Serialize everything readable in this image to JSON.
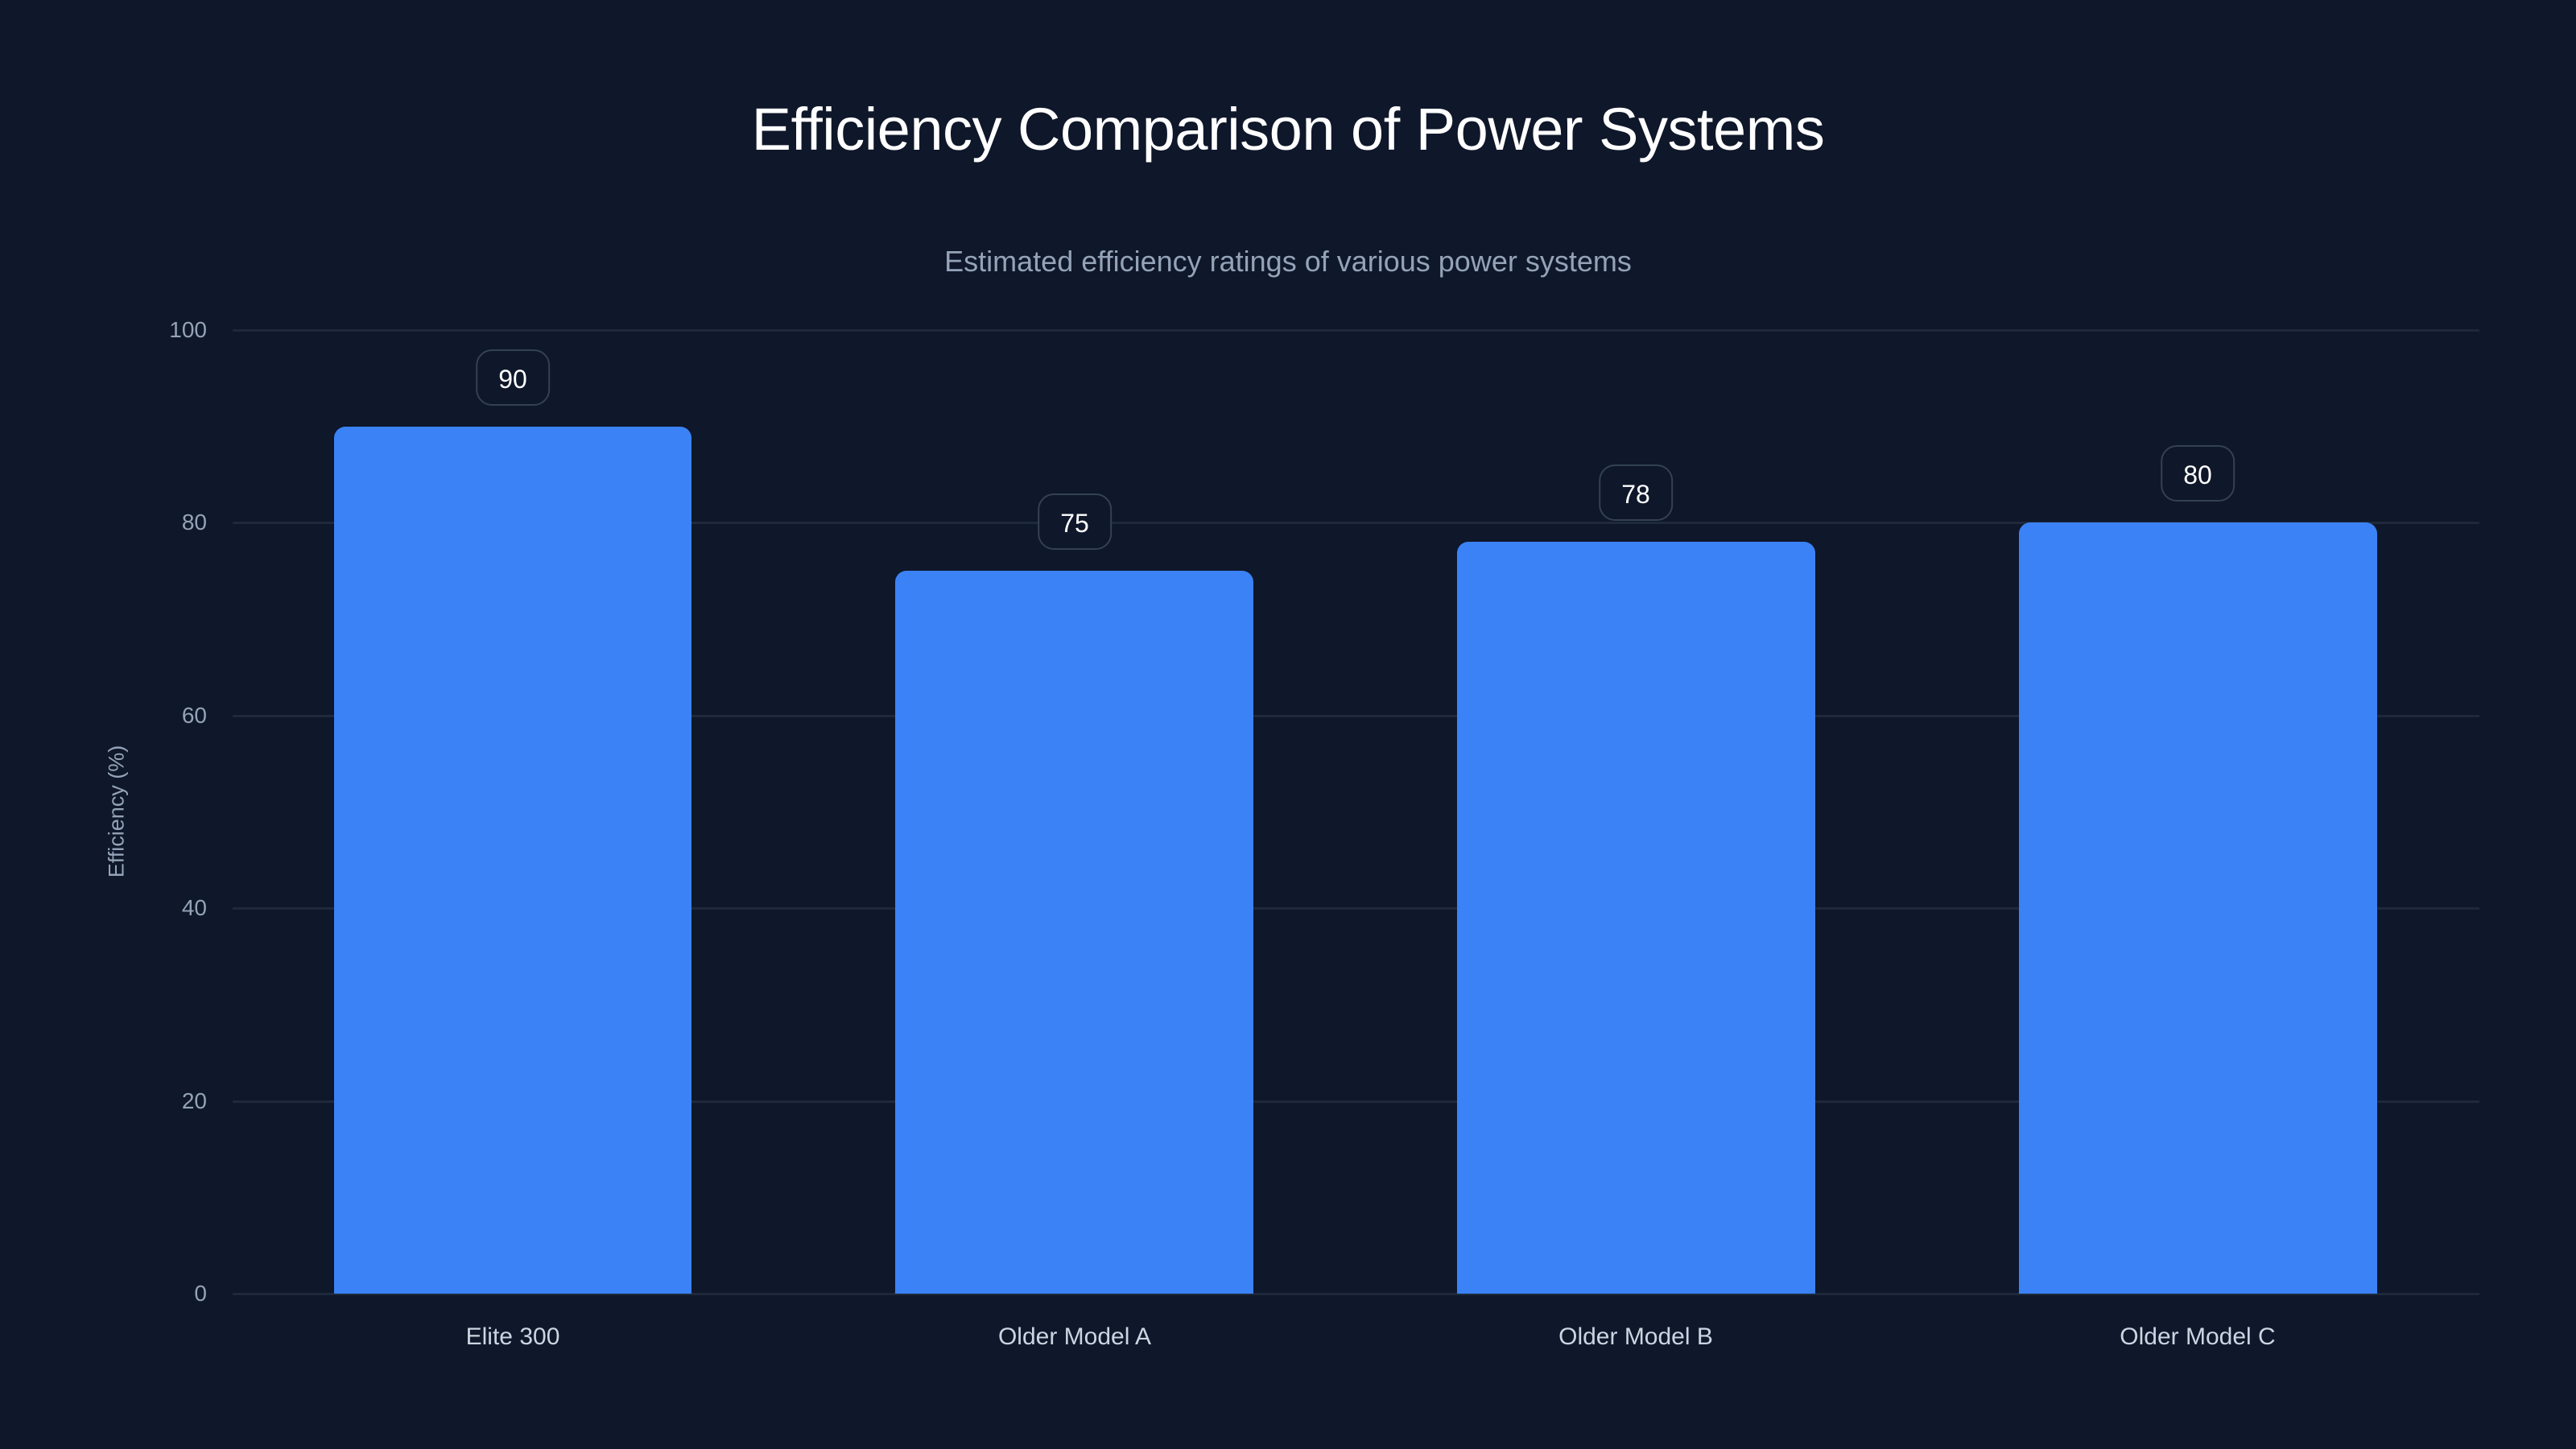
{
  "chart_data": {
    "type": "bar",
    "title": "Efficiency Comparison of Power Systems",
    "subtitle": "Estimated efficiency ratings of various power systems",
    "xlabel": "",
    "ylabel": "Efficiency (%)",
    "categories": [
      "Elite 300",
      "Older Model A",
      "Older Model B",
      "Older Model C"
    ],
    "values": [
      90,
      75,
      78,
      80
    ],
    "value_labels": [
      "90",
      "75",
      "78",
      "80"
    ],
    "ylim": [
      0,
      100
    ],
    "yticks": [
      "0",
      "20",
      "40",
      "60",
      "80",
      "100"
    ],
    "grid": true,
    "legend": null,
    "colors": {
      "background": "#0f172a",
      "bar": "#3b82f6",
      "grid": "#1e293b",
      "title": "#ffffff",
      "subtitle": "#94a3b8",
      "tick": "#94a3b8",
      "category_label": "#cbd5e1",
      "value_label_border": "#334155"
    }
  }
}
